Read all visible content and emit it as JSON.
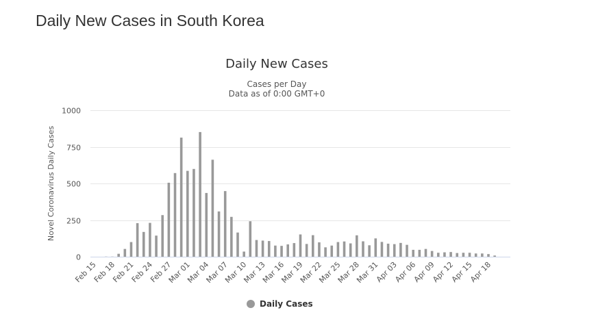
{
  "page": {
    "heading": "Daily New Cases in South Korea"
  },
  "chart_data": {
    "type": "bar",
    "title": "Daily New Cases",
    "subtitle_lines": [
      "Cases per Day",
      "Data as of 0:00 GMT+0"
    ],
    "ylabel": "Novel Coronavirus Daily Cases",
    "xlabel": "",
    "ylim": [
      0,
      1000
    ],
    "yticks": [
      0,
      250,
      500,
      750,
      1000
    ],
    "grid": true,
    "legend_position": "bottom",
    "colors": {
      "bar": "#999999",
      "grid": "#e6e6e6",
      "axis": "#ccd6eb"
    },
    "categories": [
      "Feb 15",
      "Feb 16",
      "Feb 17",
      "Feb 18",
      "Feb 19",
      "Feb 20",
      "Feb 21",
      "Feb 22",
      "Feb 23",
      "Feb 24",
      "Feb 25",
      "Feb 26",
      "Feb 27",
      "Feb 28",
      "Feb 29",
      "Mar 01",
      "Mar 02",
      "Mar 03",
      "Mar 04",
      "Mar 05",
      "Mar 06",
      "Mar 07",
      "Mar 08",
      "Mar 09",
      "Mar 10",
      "Mar 11",
      "Mar 12",
      "Mar 13",
      "Mar 14",
      "Mar 15",
      "Mar 16",
      "Mar 17",
      "Mar 18",
      "Mar 19",
      "Mar 20",
      "Mar 21",
      "Mar 22",
      "Mar 23",
      "Mar 24",
      "Mar 25",
      "Mar 26",
      "Mar 27",
      "Mar 28",
      "Mar 29",
      "Mar 30",
      "Mar 31",
      "Apr 01",
      "Apr 02",
      "Apr 03",
      "Apr 04",
      "Apr 05",
      "Apr 06",
      "Apr 07",
      "Apr 08",
      "Apr 09",
      "Apr 10",
      "Apr 11",
      "Apr 12",
      "Apr 13",
      "Apr 14",
      "Apr 15",
      "Apr 16",
      "Apr 17",
      "Apr 18",
      "Apr 19",
      "Apr 20",
      "Apr 21"
    ],
    "x_tick_labels": [
      "Feb 15",
      "Feb 18",
      "Feb 21",
      "Feb 24",
      "Feb 27",
      "Mar 01",
      "Mar 04",
      "Mar 07",
      "Mar 10",
      "Mar 13",
      "Mar 16",
      "Mar 19",
      "Mar 22",
      "Mar 25",
      "Mar 28",
      "Mar 31",
      "Apr 03",
      "Apr 06",
      "Apr 09",
      "Apr 12",
      "Apr 15",
      "Apr 18"
    ],
    "series": [
      {
        "name": "Daily Cases",
        "values": [
          0,
          0,
          1,
          1,
          20,
          53,
          100,
          229,
          169,
          231,
          144,
          284,
          505,
          571,
          813,
          586,
          599,
          851,
          435,
          662,
          309,
          448,
          272,
          165,
          35,
          242,
          114,
          110,
          107,
          76,
          74,
          84,
          93,
          152,
          87,
          147,
          98,
          64,
          76,
          100,
          104,
          91,
          146,
          105,
          78,
          125,
          101,
          89,
          86,
          94,
          81,
          47,
          47,
          53,
          39,
          27,
          30,
          32,
          25,
          27,
          27,
          22,
          22,
          18,
          8,
          0,
          0
        ]
      }
    ]
  }
}
